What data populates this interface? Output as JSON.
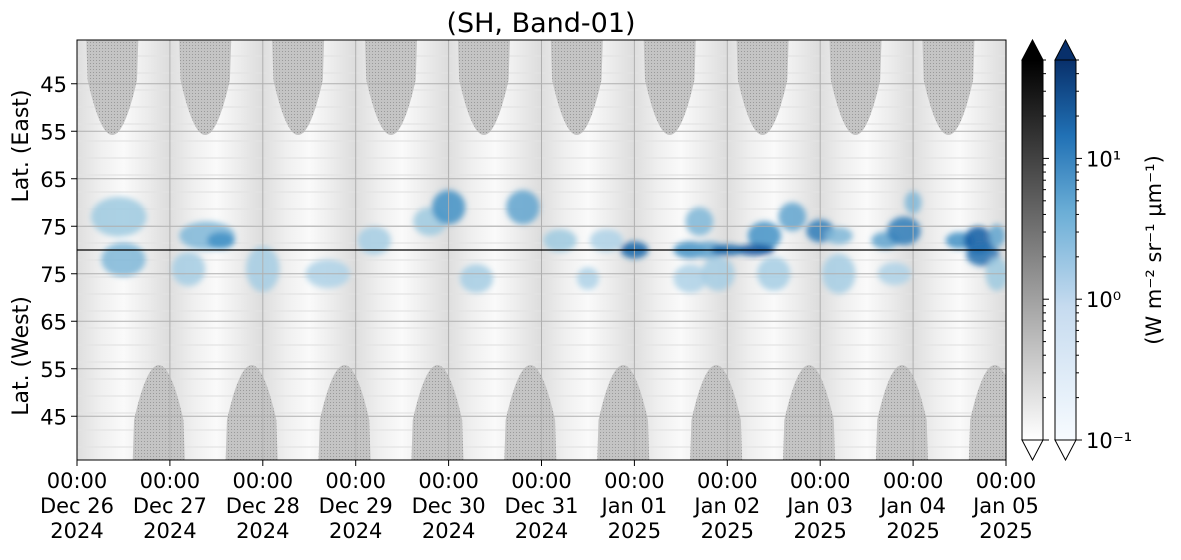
{
  "chart_data": {
    "type": "heatmap",
    "title": "(SH, Band-01)",
    "ylabel_top": "Lat. (East)",
    "ylabel_bottom": "Lat. (West)",
    "y_ticks_top": [
      "45",
      "55",
      "65",
      "75"
    ],
    "y_ticks_bottom": [
      "75",
      "65",
      "55",
      "45"
    ],
    "x_ticks": [
      {
        "time": "00:00",
        "date": "Dec 26",
        "year": "2024"
      },
      {
        "time": "00:00",
        "date": "Dec 27",
        "year": "2024"
      },
      {
        "time": "00:00",
        "date": "Dec 28",
        "year": "2024"
      },
      {
        "time": "00:00",
        "date": "Dec 29",
        "year": "2024"
      },
      {
        "time": "00:00",
        "date": "Dec 30",
        "year": "2024"
      },
      {
        "time": "00:00",
        "date": "Dec 31",
        "year": "2024"
      },
      {
        "time": "00:00",
        "date": "Jan 01",
        "year": "2025"
      },
      {
        "time": "00:00",
        "date": "Jan 02",
        "year": "2025"
      },
      {
        "time": "00:00",
        "date": "Jan 03",
        "year": "2025"
      },
      {
        "time": "00:00",
        "date": "Jan 04",
        "year": "2025"
      },
      {
        "time": "00:00",
        "date": "Jan 05",
        "year": "2025"
      }
    ],
    "colorbar": {
      "label": "(W m⁻² sr⁻¹ μm⁻¹)",
      "scale": "log",
      "range": [
        0.1,
        50
      ],
      "ticks": [
        {
          "value": 10,
          "label": "10¹"
        },
        {
          "value": 1,
          "label": "10⁰"
        },
        {
          "value": 0.1,
          "label": "10⁻¹"
        }
      ],
      "grey_cmap": [
        "#ffffff",
        "#000000"
      ],
      "blue_cmap": [
        "#f7fbff",
        "#08306b"
      ]
    },
    "grid": true,
    "blue_blobs": [
      {
        "day": 0.45,
        "lat": 73,
        "side": "E",
        "w": 0.5,
        "h": 7,
        "v": 0.4
      },
      {
        "day": 0.5,
        "lat": 78,
        "side": "W",
        "w": 0.4,
        "h": 6,
        "v": 0.5
      },
      {
        "day": 1.4,
        "lat": 77,
        "side": "E",
        "w": 0.5,
        "h": 5,
        "v": 0.5
      },
      {
        "day": 1.2,
        "lat": 76,
        "side": "W",
        "w": 0.3,
        "h": 6,
        "v": 0.35
      },
      {
        "day": 1.55,
        "lat": 78,
        "side": "E",
        "w": 0.25,
        "h": 3,
        "v": 0.7
      },
      {
        "day": 2.0,
        "lat": 76,
        "side": "W",
        "w": 0.3,
        "h": 8,
        "v": 0.35
      },
      {
        "day": 2.7,
        "lat": 75,
        "side": "W",
        "w": 0.4,
        "h": 5,
        "v": 0.3
      },
      {
        "day": 3.2,
        "lat": 78,
        "side": "E",
        "w": 0.3,
        "h": 5,
        "v": 0.35
      },
      {
        "day": 3.8,
        "lat": 74,
        "side": "E",
        "w": 0.3,
        "h": 5,
        "v": 0.4
      },
      {
        "day": 4.0,
        "lat": 71,
        "side": "E",
        "w": 0.3,
        "h": 6,
        "v": 0.7
      },
      {
        "day": 4.3,
        "lat": 74,
        "side": "W",
        "w": 0.3,
        "h": 5,
        "v": 0.35
      },
      {
        "day": 4.8,
        "lat": 71,
        "side": "E",
        "w": 0.3,
        "h": 6,
        "v": 0.6
      },
      {
        "day": 5.2,
        "lat": 78,
        "side": "E",
        "w": 0.3,
        "h": 4,
        "v": 0.4
      },
      {
        "day": 5.5,
        "lat": 74,
        "side": "W",
        "w": 0.2,
        "h": 4,
        "v": 0.3
      },
      {
        "day": 5.7,
        "lat": 78,
        "side": "E",
        "w": 0.3,
        "h": 4,
        "v": 0.3
      },
      {
        "day": 6.0,
        "lat": 80,
        "side": "E",
        "w": 0.25,
        "h": 3,
        "v": 0.9
      },
      {
        "day": 6.6,
        "lat": 80,
        "side": "E",
        "w": 0.3,
        "h": 3,
        "v": 0.7
      },
      {
        "day": 6.7,
        "lat": 74,
        "side": "E",
        "w": 0.25,
        "h": 5,
        "v": 0.5
      },
      {
        "day": 6.6,
        "lat": 74,
        "side": "W",
        "w": 0.3,
        "h": 5,
        "v": 0.3
      },
      {
        "day": 6.8,
        "lat": 80,
        "side": "E",
        "w": 0.3,
        "h": 3,
        "v": 0.6
      },
      {
        "day": 6.9,
        "lat": 75,
        "side": "W",
        "w": 0.3,
        "h": 6,
        "v": 0.35
      },
      {
        "day": 7.4,
        "lat": 77,
        "side": "E",
        "w": 0.3,
        "h": 5,
        "v": 0.7
      },
      {
        "day": 7.3,
        "lat": 80,
        "side": "E",
        "w": 0.35,
        "h": 2,
        "v": 1.0
      },
      {
        "day": 7.0,
        "lat": 80,
        "side": "E",
        "w": 0.3,
        "h": 2,
        "v": 0.9
      },
      {
        "day": 7.7,
        "lat": 73,
        "side": "E",
        "w": 0.25,
        "h": 5,
        "v": 0.6
      },
      {
        "day": 7.5,
        "lat": 75,
        "side": "W",
        "w": 0.3,
        "h": 6,
        "v": 0.35
      },
      {
        "day": 8.0,
        "lat": 76,
        "side": "E",
        "w": 0.25,
        "h": 4,
        "v": 0.8
      },
      {
        "day": 8.2,
        "lat": 77,
        "side": "E",
        "w": 0.25,
        "h": 3,
        "v": 0.5
      },
      {
        "day": 8.2,
        "lat": 75,
        "side": "W",
        "w": 0.3,
        "h": 7,
        "v": 0.35
      },
      {
        "day": 8.7,
        "lat": 78,
        "side": "E",
        "w": 0.25,
        "h": 3,
        "v": 0.6
      },
      {
        "day": 8.9,
        "lat": 76,
        "side": "E",
        "w": 0.3,
        "h": 5,
        "v": 0.8
      },
      {
        "day": 8.8,
        "lat": 75,
        "side": "W",
        "w": 0.3,
        "h": 4,
        "v": 0.3
      },
      {
        "day": 9.0,
        "lat": 70,
        "side": "E",
        "w": 0.15,
        "h": 4,
        "v": 0.5
      },
      {
        "day": 9.5,
        "lat": 78,
        "side": "E",
        "w": 0.25,
        "h": 3,
        "v": 0.7
      },
      {
        "day": 9.7,
        "lat": 78,
        "side": "E",
        "w": 0.25,
        "h": 5,
        "v": 0.95
      },
      {
        "day": 9.75,
        "lat": 79,
        "side": "W",
        "w": 0.3,
        "h": 4,
        "v": 0.85
      },
      {
        "day": 9.9,
        "lat": 77,
        "side": "E",
        "w": 0.15,
        "h": 4,
        "v": 0.6
      },
      {
        "day": 9.9,
        "lat": 75,
        "side": "W",
        "w": 0.2,
        "h": 6,
        "v": 0.4
      }
    ]
  }
}
